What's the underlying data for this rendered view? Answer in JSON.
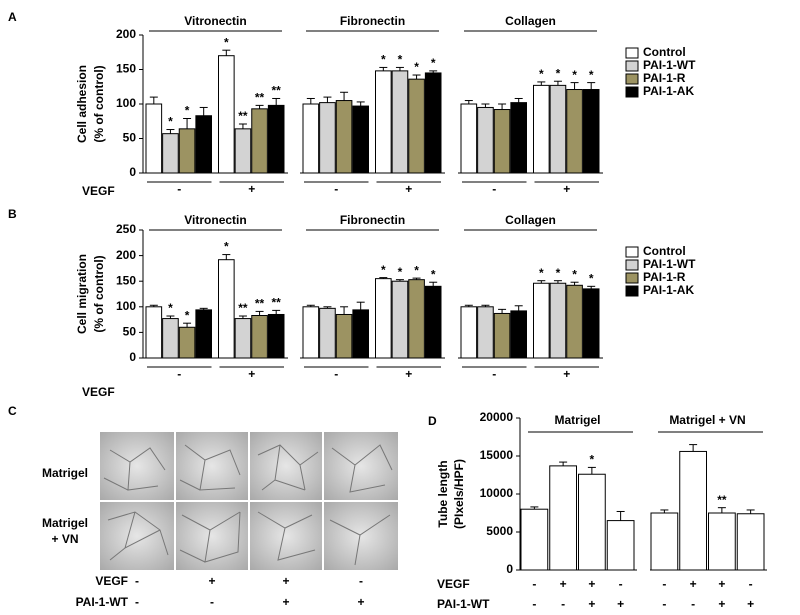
{
  "chart_data": [
    {
      "type": "grouped_bar",
      "panel": "A",
      "ylabel": [
        "Cell adhesion",
        "(% of control)"
      ],
      "xlabel": "VEGF",
      "groups": [
        "Vitronectin",
        "Fibronectin",
        "Collagen"
      ],
      "categories": [
        "-",
        "+",
        "-",
        "+",
        "-",
        "+"
      ],
      "ylim": [
        0,
        200
      ],
      "yticks": [
        0,
        50,
        100,
        150,
        200
      ],
      "legend": "upper right",
      "series": [
        {
          "name": "Control",
          "color": "#ffffff",
          "values": [
            100,
            170,
            100,
            148,
            100,
            127
          ],
          "errors": [
            10,
            8,
            8,
            5,
            5,
            5
          ],
          "annotations": [
            null,
            "*",
            null,
            "*",
            null,
            "*"
          ]
        },
        {
          "name": "PAI-1-WT",
          "color": "#d3d3d3",
          "values": [
            57,
            64,
            102,
            148,
            95,
            127
          ],
          "errors": [
            6,
            7,
            8,
            5,
            5,
            6
          ],
          "annotations": [
            "*",
            "**",
            null,
            "*",
            null,
            "*"
          ]
        },
        {
          "name": "PAI-1-R",
          "color": "#9c9362",
          "values": [
            64,
            93,
            105,
            136,
            92,
            121
          ],
          "errors": [
            15,
            5,
            12,
            6,
            8,
            10
          ],
          "annotations": [
            "*",
            "**",
            null,
            "*",
            null,
            "*"
          ]
        },
        {
          "name": "PAI-1-AK",
          "color": "#000000",
          "values": [
            83,
            98,
            97,
            145,
            102,
            121
          ],
          "errors": [
            12,
            10,
            6,
            3,
            6,
            10
          ],
          "annotations": [
            null,
            "**",
            null,
            "*",
            null,
            "*"
          ]
        }
      ]
    },
    {
      "type": "grouped_bar",
      "panel": "B",
      "ylabel": [
        "Cell migration",
        "(% of control)"
      ],
      "xlabel": "VEGF",
      "groups": [
        "Vitronectin",
        "Fibronectin",
        "Collagen"
      ],
      "categories": [
        "-",
        "+",
        "-",
        "+",
        "-",
        "+"
      ],
      "ylim": [
        0,
        250
      ],
      "yticks": [
        0,
        50,
        100,
        150,
        200,
        250
      ],
      "legend": "upper right",
      "series": [
        {
          "name": "Control",
          "color": "#ffffff",
          "values": [
            100,
            192,
            100,
            155,
            100,
            146
          ],
          "errors": [
            3,
            10,
            3,
            2,
            3,
            5
          ],
          "annotations": [
            null,
            "*",
            null,
            "*",
            null,
            "*"
          ]
        },
        {
          "name": "PAI-1-WT",
          "color": "#d3d3d3",
          "values": [
            77,
            77,
            97,
            150,
            100,
            146
          ],
          "errors": [
            5,
            5,
            3,
            3,
            3,
            5
          ],
          "annotations": [
            "*",
            "**",
            null,
            "*",
            null,
            "*"
          ]
        },
        {
          "name": "PAI-1-R",
          "color": "#9c9362",
          "values": [
            60,
            83,
            85,
            153,
            87,
            142
          ],
          "errors": [
            8,
            8,
            15,
            3,
            8,
            6
          ],
          "annotations": [
            "*",
            "**",
            null,
            "*",
            null,
            "*"
          ]
        },
        {
          "name": "PAI-1-AK",
          "color": "#000000",
          "values": [
            94,
            85,
            94,
            140,
            92,
            135
          ],
          "errors": [
            3,
            8,
            15,
            8,
            10,
            5
          ],
          "annotations": [
            null,
            "**",
            null,
            "*",
            null,
            "*"
          ]
        }
      ]
    },
    {
      "type": "bar",
      "panel": "D",
      "ylabel": [
        "Tube length",
        "(PIxels/HPF)"
      ],
      "groups": [
        "Matrigel",
        "Matrigel + VN"
      ],
      "color": "#ffffff",
      "values": [
        8000,
        13700,
        12600,
        6500,
        7500,
        15600,
        7500,
        7400
      ],
      "errors": [
        300,
        500,
        900,
        1200,
        400,
        900,
        700,
        500
      ],
      "annotations": [
        null,
        null,
        "*",
        null,
        null,
        null,
        "**",
        null
      ],
      "sign_rows": [
        {
          "label": "VEGF",
          "values": [
            "-",
            "+",
            "+",
            "-",
            "-",
            "+",
            "+",
            "-"
          ]
        },
        {
          "label": "PAI-1-WT",
          "values": [
            "-",
            "-",
            "+",
            "+",
            "-",
            "-",
            "+",
            "+"
          ]
        }
      ],
      "ylim": [
        0,
        20000
      ],
      "yticks": [
        0,
        5000,
        10000,
        15000,
        20000
      ]
    }
  ],
  "panel_c": {
    "panel": "C",
    "row_labels": [
      [
        "Matrigel"
      ],
      [
        "Matrigel",
        "+ VN"
      ]
    ],
    "sign_rows": [
      {
        "label": "VEGF",
        "values": [
          "-",
          "+",
          "+",
          "-"
        ]
      },
      {
        "label": "PAI-1-WT",
        "values": [
          "-",
          "-",
          "+",
          "+"
        ]
      }
    ]
  }
}
